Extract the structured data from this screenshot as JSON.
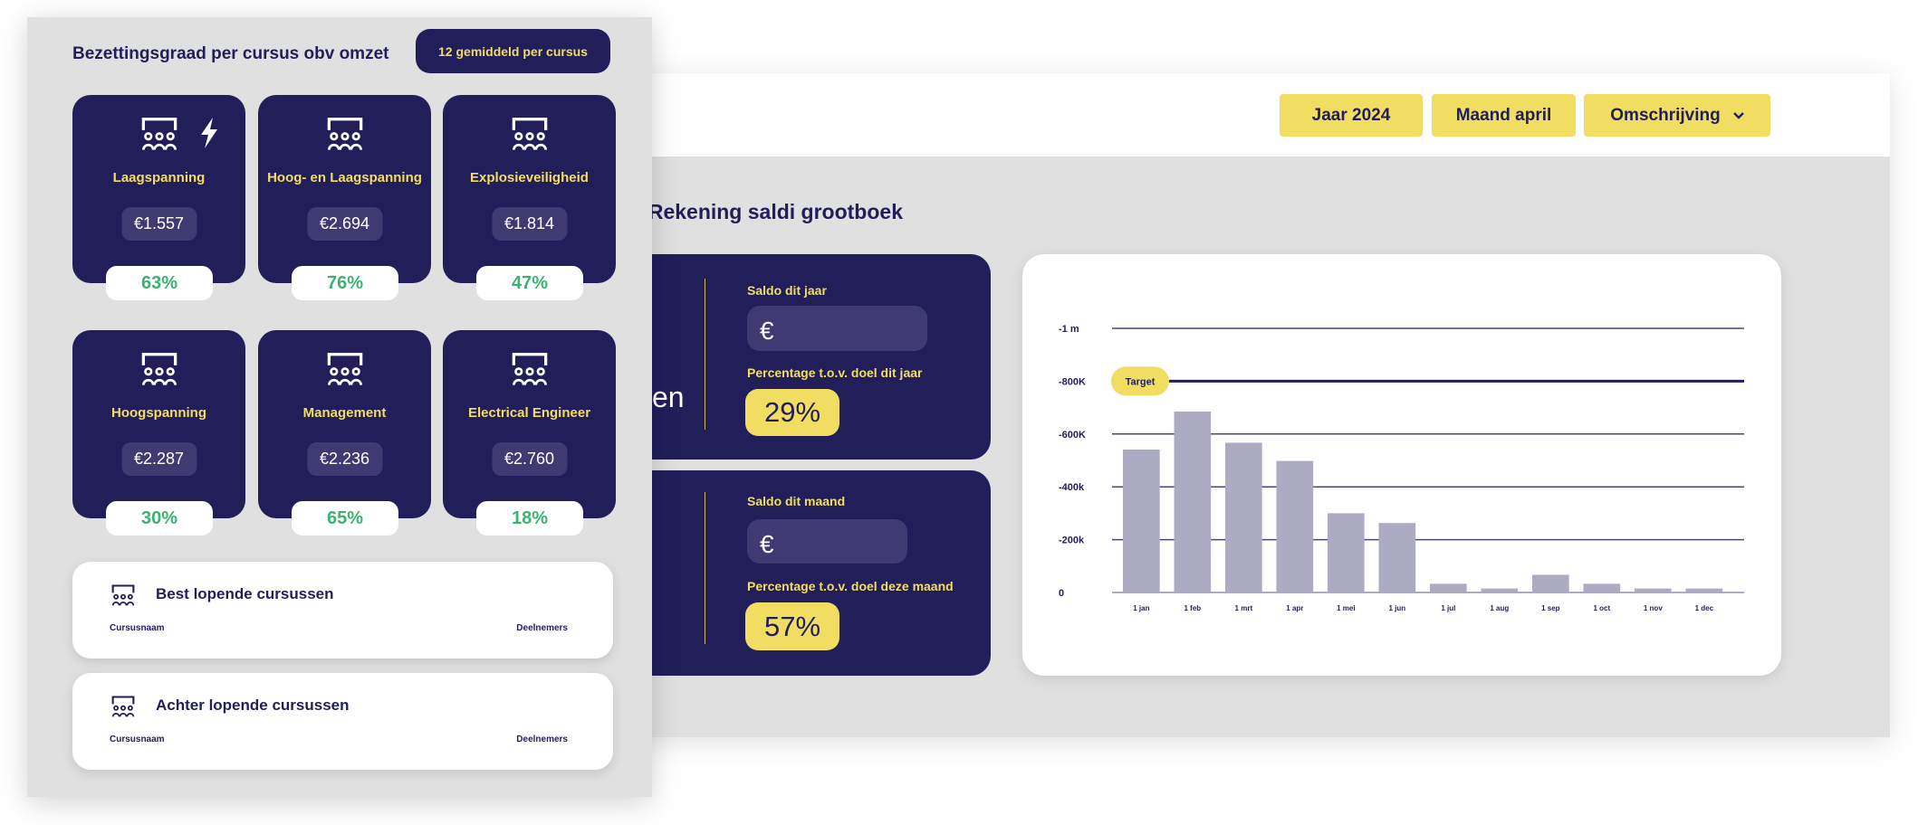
{
  "colors": {
    "navy": "#211e5a",
    "yellow": "#f2dd63",
    "green": "#3cb371",
    "bar": "#adabc3",
    "panel": "#e0e0e0"
  },
  "filters": {
    "year": "Jaar 2024",
    "month": "Maand april",
    "description": "Omschrijving"
  },
  "section_title": "g. Rekening saldi grootboek",
  "partial_label": "en",
  "year_card": {
    "saldo_label": "Saldo dit jaar",
    "saldo_value": "€",
    "pct_label": "Percentage t.o.v. doel dit jaar",
    "pct_value": "29%"
  },
  "month_card": {
    "saldo_label": "Saldo dit maand",
    "saldo_value": "€",
    "pct_label": "Percentage t.o.v. doel deze maand",
    "pct_value": "57%"
  },
  "chart_data": {
    "type": "bar",
    "categories": [
      "1 jan",
      "1 feb",
      "1 mrt",
      "1 apr",
      "1 mei",
      "1 jun",
      "1 jul",
      "1 aug",
      "1 sep",
      "1 oct",
      "1 nov",
      "1 dec"
    ],
    "values": [
      -541000,
      -685000,
      -567000,
      -498000,
      -300000,
      -263000,
      -33000,
      -15000,
      -67000,
      -33000,
      -15000,
      -15000
    ],
    "yticks": [
      {
        "v": 0,
        "label": "0"
      },
      {
        "v": -200000,
        "label": "-200k"
      },
      {
        "v": -400000,
        "label": "-400k"
      },
      {
        "v": -600000,
        "label": "-600K"
      },
      {
        "v": -800000,
        "label": "-800K"
      },
      {
        "v": -1000000,
        "label": "-1 m"
      }
    ],
    "ylim": [
      0,
      -1000000
    ],
    "target": {
      "label": "Target",
      "value": -800000
    },
    "grid": true
  },
  "left": {
    "title": "Bezettingsgraad per cursus obv omzet",
    "badge": "12 gemiddeld per cursus",
    "courses": [
      {
        "name": "Laagspanning",
        "price": "€1.557",
        "pct": "63%",
        "icon": "classroom-icon",
        "extra_icon": "lightning-icon"
      },
      {
        "name": "Hoog- en Laagspanning",
        "price": "€2.694",
        "pct": "76%",
        "icon": "classroom-icon"
      },
      {
        "name": "Explosieveiligheid",
        "price": "€1.814",
        "pct": "47%",
        "icon": "classroom-icon"
      },
      {
        "name": "Hoogspanning",
        "price": "€2.287",
        "pct": "30%",
        "icon": "classroom-icon"
      },
      {
        "name": "Management",
        "price": "€2.236",
        "pct": "65%",
        "icon": "classroom-icon"
      },
      {
        "name": "Electrical Engineer",
        "price": "€2.760",
        "pct": "18%",
        "icon": "classroom-icon"
      }
    ],
    "lists": [
      {
        "title": "Best lopende cursussen",
        "col1": "Cursusnaam",
        "col2": "Deelnemers"
      },
      {
        "title": "Achter lopende cursussen",
        "col1": "Cursusnaam",
        "col2": "Deelnemers"
      }
    ]
  }
}
